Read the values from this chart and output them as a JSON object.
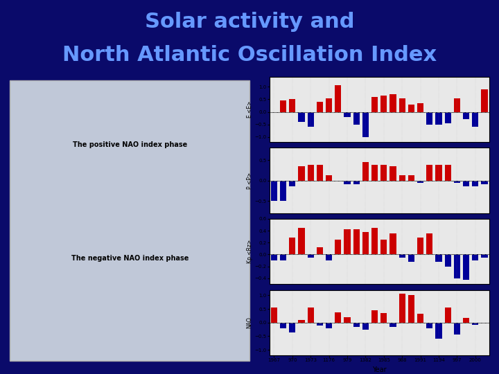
{
  "title_line1": "Solar activity and",
  "title_line2": "North Atlantic Oscillation Index",
  "title_color": "#6699ff",
  "bg_color": "#0a0a6a",
  "chart_bg": "#e8e8e8",
  "year_labels": [
    "1967",
    "970",
    "1973",
    "1176",
    "979",
    "1382",
    "1985",
    "988",
    "1991",
    "1194",
    "997",
    "2000"
  ],
  "panel1_label": "E <E>",
  "panel2_label": "P <P>",
  "panel3_label": "Kp <Rz>",
  "panel4_label": "NAO",
  "panel1_ylim": [
    -1.2,
    1.4
  ],
  "panel2_ylim": [
    -0.8,
    0.8
  ],
  "panel3_ylim": [
    -0.5,
    0.6
  ],
  "panel4_ylim": [
    -1.2,
    1.2
  ],
  "panel1_values": [
    0.0,
    0.45,
    0.5,
    -0.4,
    -0.6,
    0.4,
    0.55,
    1.05,
    -0.2,
    -0.5,
    -1.0,
    0.6,
    0.65,
    0.7,
    0.55,
    0.3,
    0.35,
    -0.5,
    -0.5,
    -0.45,
    0.55,
    -0.3,
    -0.6,
    0.9
  ],
  "panel2_values": [
    -0.5,
    -0.5,
    -0.15,
    0.35,
    0.38,
    0.38,
    0.12,
    0.0,
    -0.1,
    -0.1,
    0.45,
    0.38,
    0.38,
    0.35,
    0.12,
    0.12,
    -0.05,
    0.38,
    0.38,
    0.38,
    -0.05,
    -0.15,
    -0.15,
    -0.1
  ],
  "panel3_values": [
    -0.1,
    -0.1,
    0.28,
    0.45,
    -0.05,
    0.12,
    -0.1,
    0.25,
    0.42,
    0.42,
    0.38,
    0.45,
    0.25,
    0.35,
    -0.05,
    -0.12,
    0.28,
    0.35,
    -0.12,
    -0.2,
    -0.4,
    -0.42,
    -0.1,
    -0.05
  ],
  "panel4_values": [
    0.55,
    -0.2,
    -0.35,
    0.1,
    0.55,
    -0.1,
    -0.2,
    0.38,
    0.2,
    -0.15,
    -0.25,
    0.45,
    0.35,
    -0.15,
    1.05,
    1.0,
    0.32,
    -0.2,
    -0.6,
    0.55,
    -0.45,
    0.18,
    -0.08,
    0.0
  ],
  "positive_color": "#cc0000",
  "negative_color": "#000099",
  "dashed_line_color": "#888888"
}
